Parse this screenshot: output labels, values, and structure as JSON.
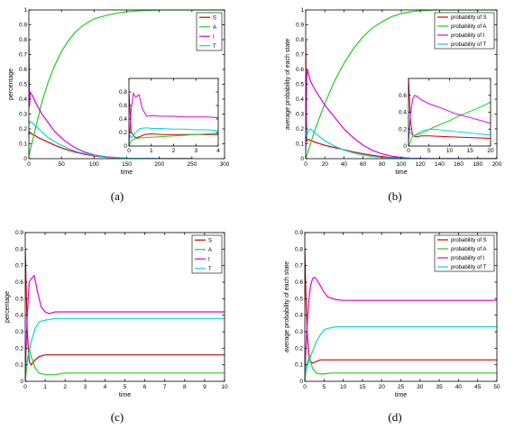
{
  "chart_data": [
    {
      "type": "line",
      "caption": "(a)",
      "xlabel": "time",
      "ylabel": "percentage",
      "xlim": [
        0,
        300
      ],
      "ylim": [
        0,
        1
      ],
      "xticks": [
        0,
        50,
        100,
        150,
        200,
        250,
        300
      ],
      "yticks": [
        0,
        0.1,
        0.2,
        0.3,
        0.4,
        0.5,
        0.6,
        0.7,
        0.8,
        0.9,
        1
      ],
      "legend_position": "top-right",
      "series": [
        {
          "name": "S",
          "color": "#d40000",
          "x": [
            0,
            1,
            3,
            8,
            15,
            25,
            40,
            55,
            70,
            85,
            100,
            120,
            150,
            200,
            250
          ],
          "y": [
            0.16,
            0.18,
            0.17,
            0.16,
            0.14,
            0.12,
            0.09,
            0.065,
            0.045,
            0.03,
            0.018,
            0.008,
            0.002,
            0,
            0
          ]
        },
        {
          "name": "A",
          "color": "#22cc22",
          "x": [
            0,
            10,
            20,
            30,
            40,
            50,
            60,
            70,
            80,
            90,
            100,
            120,
            140,
            160,
            180,
            200,
            250,
            300
          ],
          "y": [
            0.02,
            0.2,
            0.38,
            0.52,
            0.63,
            0.72,
            0.79,
            0.845,
            0.885,
            0.915,
            0.94,
            0.965,
            0.982,
            0.992,
            0.997,
            1,
            1,
            1
          ]
        },
        {
          "name": "I",
          "color": "#e000e0",
          "x": [
            0,
            1,
            2,
            3,
            6,
            10,
            20,
            30,
            40,
            55,
            70,
            85,
            100,
            120,
            150,
            200,
            250
          ],
          "y": [
            0.8,
            0.35,
            0.45,
            0.44,
            0.42,
            0.38,
            0.3,
            0.24,
            0.18,
            0.12,
            0.075,
            0.045,
            0.025,
            0.012,
            0.003,
            0,
            0
          ]
        },
        {
          "name": "T",
          "color": "#00d8d8",
          "x": [
            0,
            2,
            5,
            10,
            20,
            30,
            45,
            60,
            75,
            90,
            105,
            120,
            150,
            200,
            250
          ],
          "y": [
            0.23,
            0.25,
            0.24,
            0.22,
            0.18,
            0.14,
            0.1,
            0.07,
            0.045,
            0.03,
            0.018,
            0.01,
            0.003,
            0,
            0
          ]
        }
      ],
      "inset": {
        "xlim": [
          0,
          4
        ],
        "ylim": [
          0,
          1
        ],
        "xticks": [
          0,
          1,
          2,
          3,
          4
        ],
        "yticks": [
          0,
          0.2,
          0.4,
          0.6,
          0.8
        ],
        "series": [
          {
            "name": "S",
            "color": "#d40000",
            "x": [
              0,
              0.1,
              0.3,
              0.5,
              0.7,
              1,
              1.5,
              2,
              2.5,
              3,
              3.5,
              4
            ],
            "y": [
              0.8,
              0.2,
              0.12,
              0.14,
              0.17,
              0.18,
              0.17,
              0.17,
              0.17,
              0.17,
              0.17,
              0.17
            ]
          },
          {
            "name": "A",
            "color": "#22cc22",
            "x": [
              0,
              0.1,
              0.3,
              0.5,
              1,
              1.5,
              2,
              2.5,
              3,
              3.5,
              4
            ],
            "y": [
              0,
              0.08,
              0.11,
              0.12,
              0.13,
              0.14,
              0.15,
              0.16,
              0.17,
              0.18,
              0.19
            ]
          },
          {
            "name": "I",
            "color": "#e000e0",
            "x": [
              0,
              0.1,
              0.2,
              0.3,
              0.45,
              0.6,
              0.8,
              1,
              1.5,
              2,
              2.5,
              3,
              3.5,
              4
            ],
            "y": [
              0.03,
              0.55,
              0.78,
              0.72,
              0.76,
              0.55,
              0.44,
              0.45,
              0.44,
              0.44,
              0.43,
              0.43,
              0.43,
              0.42
            ]
          },
          {
            "name": "T",
            "color": "#00d8d8",
            "x": [
              0,
              0.1,
              0.3,
              0.5,
              0.8,
              1,
              1.5,
              2,
              2.5,
              3,
              3.5,
              4
            ],
            "y": [
              0.2,
              0.12,
              0.2,
              0.26,
              0.27,
              0.26,
              0.26,
              0.25,
              0.25,
              0.24,
              0.24,
              0.23
            ]
          }
        ]
      }
    },
    {
      "type": "line",
      "caption": "(b)",
      "xlabel": "time",
      "ylabel": "average probability of each state",
      "xlim": [
        0,
        200
      ],
      "ylim": [
        0,
        1
      ],
      "xticks": [
        0,
        20,
        40,
        60,
        80,
        100,
        120,
        140,
        160,
        180,
        200
      ],
      "yticks": [
        0,
        0.1,
        0.2,
        0.3,
        0.4,
        0.5,
        0.6,
        0.7,
        0.8,
        0.9,
        1
      ],
      "legend_position": "top-right",
      "series": [
        {
          "name": "probability of S",
          "color": "#d40000",
          "x": [
            0,
            0.5,
            1,
            3,
            6,
            10,
            20,
            30,
            40,
            50,
            60,
            70,
            80,
            90,
            100,
            110,
            130,
            160,
            200
          ],
          "y": [
            0.8,
            0.3,
            0.12,
            0.13,
            0.12,
            0.11,
            0.09,
            0.075,
            0.06,
            0.045,
            0.033,
            0.022,
            0.014,
            0.008,
            0.004,
            0.002,
            0,
            0,
            0
          ]
        },
        {
          "name": "probability of A",
          "color": "#22cc22",
          "x": [
            0,
            5,
            10,
            20,
            30,
            40,
            50,
            60,
            70,
            80,
            90,
            100,
            110,
            120,
            130,
            140,
            150,
            160,
            180,
            200
          ],
          "y": [
            0,
            0.1,
            0.2,
            0.37,
            0.52,
            0.64,
            0.74,
            0.82,
            0.88,
            0.92,
            0.955,
            0.975,
            0.988,
            0.995,
            0.998,
            1,
            1,
            1,
            1,
            1
          ]
        },
        {
          "name": "probability of I",
          "color": "#e000e0",
          "x": [
            0,
            1,
            2,
            3,
            5,
            10,
            20,
            30,
            40,
            50,
            60,
            70,
            80,
            90,
            100,
            110,
            130,
            160,
            200
          ],
          "y": [
            0.05,
            0.55,
            0.6,
            0.57,
            0.52,
            0.46,
            0.36,
            0.28,
            0.2,
            0.14,
            0.09,
            0.055,
            0.032,
            0.017,
            0.008,
            0.003,
            0,
            0,
            0
          ]
        },
        {
          "name": "probability of T",
          "color": "#00d8d8",
          "x": [
            0,
            1,
            3,
            5,
            10,
            20,
            30,
            40,
            50,
            60,
            70,
            80,
            90,
            100,
            110,
            130,
            160,
            200
          ],
          "y": [
            0.2,
            0.15,
            0.19,
            0.2,
            0.17,
            0.12,
            0.085,
            0.058,
            0.038,
            0.024,
            0.014,
            0.008,
            0.004,
            0.002,
            0.001,
            0,
            0,
            0
          ]
        }
      ],
      "inset": {
        "xlim": [
          0,
          20
        ],
        "ylim": [
          0,
          0.8
        ],
        "xticks": [
          0,
          5,
          10,
          15,
          20
        ],
        "yticks": [
          0,
          0.2,
          0.4,
          0.6
        ],
        "series": [
          {
            "name": "probability of S",
            "color": "#d40000",
            "x": [
              0,
              0.5,
              1,
              2,
              3,
              5,
              10,
              15,
              20
            ],
            "y": [
              0.8,
              0.3,
              0.12,
              0.11,
              0.12,
              0.12,
              0.11,
              0.1,
              0.09
            ]
          },
          {
            "name": "probability of A",
            "color": "#22cc22",
            "x": [
              0,
              1,
              2,
              4,
              6,
              8,
              10,
              12,
              14,
              16,
              18,
              20
            ],
            "y": [
              0,
              0.12,
              0.13,
              0.17,
              0.22,
              0.26,
              0.3,
              0.35,
              0.39,
              0.43,
              0.47,
              0.52
            ]
          },
          {
            "name": "probability of I",
            "color": "#e000e0",
            "x": [
              0,
              0.5,
              1,
              1.5,
              2,
              3,
              5,
              8,
              11,
              14,
              17,
              20
            ],
            "y": [
              0.05,
              0.38,
              0.55,
              0.6,
              0.59,
              0.55,
              0.5,
              0.45,
              0.39,
              0.35,
              0.31,
              0.27
            ]
          },
          {
            "name": "probability of T",
            "color": "#00d8d8",
            "x": [
              0,
              1,
              2,
              3,
              4,
              6,
              8,
              10,
              12,
              14,
              16,
              18,
              20
            ],
            "y": [
              0.2,
              0.12,
              0.14,
              0.17,
              0.19,
              0.2,
              0.19,
              0.18,
              0.17,
              0.16,
              0.15,
              0.14,
              0.13
            ]
          }
        ]
      }
    },
    {
      "type": "line",
      "caption": "(c)",
      "xlabel": "time",
      "ylabel": "percentage",
      "xlim": [
        0,
        10
      ],
      "ylim": [
        0,
        0.9
      ],
      "xticks": [
        0,
        1,
        2,
        3,
        4,
        5,
        6,
        7,
        8,
        9,
        10
      ],
      "yticks": [
        0,
        0.1,
        0.2,
        0.3,
        0.4,
        0.5,
        0.6,
        0.7,
        0.8,
        0.9
      ],
      "legend_position": "top-right",
      "series": [
        {
          "name": "S",
          "color": "#d40000",
          "x": [
            0,
            0.1,
            0.2,
            0.3,
            0.5,
            0.7,
            1,
            1.5,
            2,
            3,
            4,
            5,
            6,
            7,
            8,
            9,
            10
          ],
          "y": [
            0.8,
            0.3,
            0.12,
            0.1,
            0.13,
            0.15,
            0.16,
            0.16,
            0.16,
            0.16,
            0.16,
            0.16,
            0.16,
            0.16,
            0.16,
            0.16,
            0.16
          ]
        },
        {
          "name": "A",
          "color": "#22cc22",
          "x": [
            0,
            0.1,
            0.2,
            0.3,
            0.5,
            0.7,
            1,
            1.5,
            2,
            3,
            4,
            5,
            6,
            7,
            8,
            9,
            10
          ],
          "y": [
            0,
            0.12,
            0.2,
            0.15,
            0.08,
            0.05,
            0.04,
            0.04,
            0.05,
            0.05,
            0.05,
            0.05,
            0.05,
            0.05,
            0.05,
            0.05,
            0.05
          ]
        },
        {
          "name": "I",
          "color": "#e000e0",
          "x": [
            0,
            0.1,
            0.2,
            0.3,
            0.45,
            0.6,
            0.8,
            1,
            1.2,
            1.5,
            2,
            3,
            4,
            5,
            6,
            7,
            8,
            9,
            10
          ],
          "y": [
            0.05,
            0.4,
            0.6,
            0.62,
            0.64,
            0.55,
            0.45,
            0.42,
            0.41,
            0.42,
            0.42,
            0.42,
            0.42,
            0.42,
            0.42,
            0.42,
            0.42,
            0.42,
            0.42
          ]
        },
        {
          "name": "T",
          "color": "#00d8d8",
          "x": [
            0,
            0.1,
            0.2,
            0.3,
            0.5,
            0.7,
            1,
            1.5,
            2,
            3,
            4,
            5,
            6,
            7,
            8,
            9,
            10
          ],
          "y": [
            0.1,
            0.13,
            0.18,
            0.24,
            0.32,
            0.36,
            0.37,
            0.38,
            0.38,
            0.38,
            0.38,
            0.38,
            0.38,
            0.38,
            0.38,
            0.38,
            0.38
          ]
        }
      ]
    },
    {
      "type": "line",
      "caption": "(d)",
      "xlabel": "time",
      "ylabel": "average probability of each state",
      "xlim": [
        0,
        50
      ],
      "ylim": [
        0,
        0.9
      ],
      "xticks": [
        0,
        5,
        10,
        15,
        20,
        25,
        30,
        35,
        40,
        45,
        50
      ],
      "yticks": [
        0,
        0.1,
        0.2,
        0.3,
        0.4,
        0.5,
        0.6,
        0.7,
        0.8,
        0.9
      ],
      "legend_position": "top-right",
      "series": [
        {
          "name": "probability of S",
          "color": "#d40000",
          "x": [
            0,
            0.3,
            0.6,
            1,
            1.5,
            2,
            3,
            4,
            5,
            7,
            10,
            20,
            30,
            40,
            50
          ],
          "y": [
            0.8,
            0.5,
            0.3,
            0.17,
            0.12,
            0.11,
            0.12,
            0.13,
            0.13,
            0.13,
            0.13,
            0.13,
            0.13,
            0.13,
            0.13
          ]
        },
        {
          "name": "probability of A",
          "color": "#22cc22",
          "x": [
            0,
            0.5,
            1,
            1.5,
            2,
            3,
            4,
            5,
            7,
            10,
            20,
            30,
            40,
            50
          ],
          "y": [
            0,
            0.1,
            0.14,
            0.12,
            0.08,
            0.05,
            0.045,
            0.045,
            0.05,
            0.05,
            0.05,
            0.05,
            0.05,
            0.05
          ]
        },
        {
          "name": "probability of I",
          "color": "#e000e0",
          "x": [
            0,
            0.5,
            1,
            1.5,
            2,
            2.5,
            3,
            4,
            5,
            6,
            8,
            10,
            20,
            30,
            40,
            50
          ],
          "y": [
            0.05,
            0.3,
            0.48,
            0.58,
            0.62,
            0.63,
            0.62,
            0.58,
            0.54,
            0.51,
            0.495,
            0.49,
            0.49,
            0.49,
            0.49,
            0.49
          ]
        },
        {
          "name": "probability of T",
          "color": "#00d8d8",
          "x": [
            0,
            0.5,
            1,
            2,
            3,
            4,
            5,
            6,
            8,
            10,
            15,
            20,
            30,
            40,
            50
          ],
          "y": [
            0.05,
            0.08,
            0.12,
            0.18,
            0.24,
            0.28,
            0.31,
            0.32,
            0.33,
            0.33,
            0.33,
            0.33,
            0.33,
            0.33,
            0.33
          ]
        }
      ]
    }
  ]
}
